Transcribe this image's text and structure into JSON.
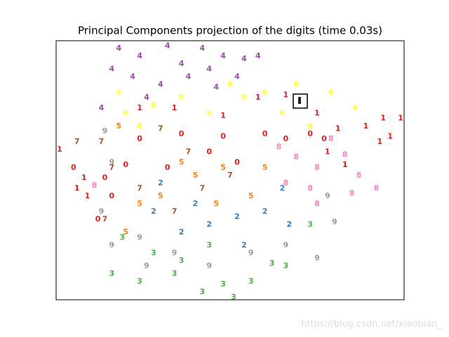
{
  "chart_data": {
    "type": "scatter",
    "title": "Principal Components projection of the digits (time 0.03s)",
    "watermark": "https://blog.csdn.net/xiaobian_",
    "xlim": [
      0,
      100
    ],
    "ylim": [
      0,
      100
    ],
    "series": [
      {
        "name": "0",
        "color": "#e41a1c",
        "x": [
          5,
          14,
          12,
          24,
          36,
          48,
          60,
          66,
          73,
          77,
          20,
          32,
          52,
          44,
          16
        ],
        "y": [
          51,
          47,
          31,
          62,
          64,
          63,
          64,
          62,
          64,
          62,
          52,
          51,
          53,
          57,
          40
        ]
      },
      {
        "name": "1",
        "color": "#e41a1c",
        "x": [
          24,
          34,
          48,
          58,
          66,
          75,
          81,
          89,
          94,
          99,
          96,
          93,
          78,
          1,
          6,
          9,
          8,
          83
        ],
        "y": [
          74,
          74,
          71,
          78,
          79,
          72,
          66,
          67,
          70,
          70,
          63,
          61,
          57,
          58,
          43,
          40,
          47,
          52
        ]
      },
      {
        "name": "2",
        "color": "#377eb8",
        "x": [
          28,
          36,
          44,
          52,
          60,
          67,
          30,
          54,
          40,
          65
        ],
        "y": [
          34,
          26,
          29,
          32,
          34,
          29,
          45,
          21,
          37,
          43
        ]
      },
      {
        "name": "3",
        "color": "#4daf4a",
        "x": [
          16,
          24,
          34,
          42,
          48,
          51,
          56,
          62,
          73,
          36,
          44,
          28,
          19,
          66
        ],
        "y": [
          10,
          7,
          10,
          3,
          6,
          1,
          7,
          14,
          29,
          15,
          21,
          18,
          24,
          13
        ]
      },
      {
        "name": "4",
        "color": "#984ea3",
        "x": [
          18,
          24,
          32,
          36,
          42,
          48,
          54,
          16,
          22,
          30,
          38,
          44,
          52,
          13,
          26,
          58,
          46
        ],
        "y": [
          97,
          94,
          98,
          91,
          97,
          94,
          93,
          89,
          86,
          83,
          86,
          89,
          86,
          74,
          78,
          94,
          82
        ]
      },
      {
        "name": "5",
        "color": "#ff7f00",
        "x": [
          18,
          24,
          20,
          40,
          48,
          56,
          60,
          30,
          46,
          36
        ],
        "y": [
          67,
          37,
          26,
          48,
          51,
          40,
          51,
          40,
          37,
          53
        ]
      },
      {
        "name": "6",
        "color": "#ffff33",
        "x": [
          18,
          28,
          36,
          44,
          54,
          60,
          69,
          79,
          86,
          73,
          24,
          20,
          50,
          65
        ],
        "y": [
          80,
          75,
          78,
          72,
          78,
          80,
          83,
          80,
          74,
          67,
          67,
          72,
          83,
          72
        ]
      },
      {
        "name": "7",
        "color": "#a65628",
        "x": [
          6,
          13,
          16,
          30,
          38,
          42,
          24,
          50,
          14,
          34
        ],
        "y": [
          61,
          61,
          51,
          66,
          57,
          43,
          43,
          48,
          31,
          34
        ]
      },
      {
        "name": "8",
        "color": "#f781bf",
        "x": [
          64,
          69,
          75,
          83,
          87,
          92,
          73,
          85,
          11,
          66,
          79,
          75
        ],
        "y": [
          59,
          55,
          51,
          56,
          48,
          43,
          43,
          41,
          44,
          45,
          62,
          37
        ]
      },
      {
        "name": "9",
        "color": "#999999",
        "x": [
          14,
          16,
          13,
          16,
          26,
          34,
          44,
          56,
          66,
          75,
          80,
          78,
          24
        ],
        "y": [
          65,
          53,
          34,
          21,
          13,
          18,
          13,
          18,
          21,
          16,
          30,
          40,
          24
        ]
      }
    ]
  }
}
